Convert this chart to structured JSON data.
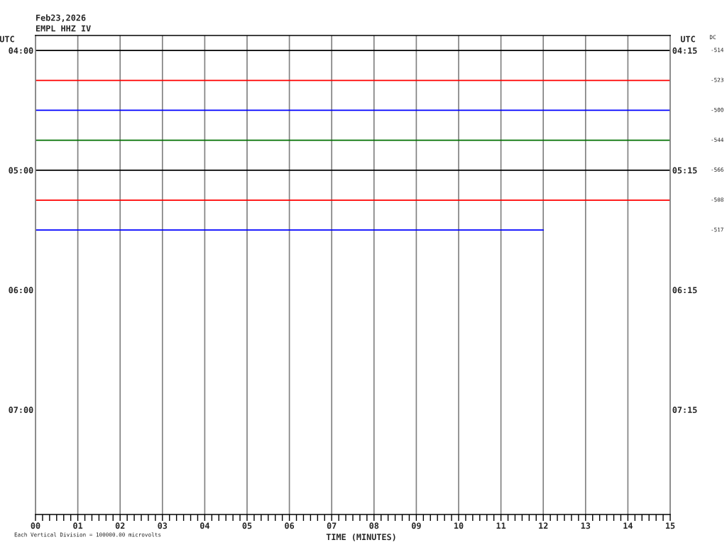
{
  "chart_data": {
    "type": "line",
    "title": "Feb23,2026",
    "subtitle": "EMPL HHZ IV",
    "xlabel": "TIME (MINUTES)",
    "ylabel": "UTC",
    "y2label": "UTC",
    "annotations": [
      "DC",
      "-514",
      "-523",
      "-500",
      "-544",
      "-566",
      "-508",
      "-517",
      "Each Vertical Division = 100000.00 microvolts"
    ],
    "xlim": [
      0,
      15
    ],
    "xticks": [
      {
        "value": 0,
        "label": "00"
      },
      {
        "value": 0.167,
        "label": null
      },
      {
        "value": 0.333,
        "label": null
      },
      {
        "value": 0.5,
        "label": null
      },
      {
        "value": 0.667,
        "label": null
      },
      {
        "value": 0.833,
        "label": null
      },
      {
        "value": 1,
        "label": "01"
      },
      {
        "value": 1.167,
        "label": null
      },
      {
        "value": 1.333,
        "label": null
      },
      {
        "value": 1.5,
        "label": null
      },
      {
        "value": 1.667,
        "label": null
      },
      {
        "value": 1.833,
        "label": null
      },
      {
        "value": 2,
        "label": "02"
      },
      {
        "value": 2.167,
        "label": null
      },
      {
        "value": 2.333,
        "label": null
      },
      {
        "value": 2.5,
        "label": null
      },
      {
        "value": 2.667,
        "label": null
      },
      {
        "value": 2.833,
        "label": null
      },
      {
        "value": 3,
        "label": "03"
      },
      {
        "value": 3.167,
        "label": null
      },
      {
        "value": 3.333,
        "label": null
      },
      {
        "value": 3.5,
        "label": null
      },
      {
        "value": 3.667,
        "label": null
      },
      {
        "value": 3.833,
        "label": null
      },
      {
        "value": 4,
        "label": "04"
      },
      {
        "value": 4.167,
        "label": null
      },
      {
        "value": 4.333,
        "label": null
      },
      {
        "value": 4.5,
        "label": null
      },
      {
        "value": 4.667,
        "label": null
      },
      {
        "value": 4.833,
        "label": null
      },
      {
        "value": 5,
        "label": "05"
      },
      {
        "value": 5.167,
        "label": null
      },
      {
        "value": 5.333,
        "label": null
      },
      {
        "value": 5.5,
        "label": null
      },
      {
        "value": 5.667,
        "label": null
      },
      {
        "value": 5.833,
        "label": null
      },
      {
        "value": 6,
        "label": "06"
      },
      {
        "value": 6.167,
        "label": null
      },
      {
        "value": 6.333,
        "label": null
      },
      {
        "value": 6.5,
        "label": null
      },
      {
        "value": 6.667,
        "label": null
      },
      {
        "value": 6.833,
        "label": null
      },
      {
        "value": 7,
        "label": "07"
      },
      {
        "value": 7.167,
        "label": null
      },
      {
        "value": 7.333,
        "label": null
      },
      {
        "value": 7.5,
        "label": null
      },
      {
        "value": 7.667,
        "label": null
      },
      {
        "value": 7.833,
        "label": null
      },
      {
        "value": 8,
        "label": "08"
      },
      {
        "value": 8.167,
        "label": null
      },
      {
        "value": 8.333,
        "label": null
      },
      {
        "value": 8.5,
        "label": null
      },
      {
        "value": 8.667,
        "label": null
      },
      {
        "value": 8.833,
        "label": null
      },
      {
        "value": 9,
        "label": "09"
      },
      {
        "value": 9.167,
        "label": null
      },
      {
        "value": 9.333,
        "label": null
      },
      {
        "value": 9.5,
        "label": null
      },
      {
        "value": 9.667,
        "label": null
      },
      {
        "value": 9.833,
        "label": null
      },
      10,
      {
        "value": 10.167,
        "label": null
      },
      {
        "value": 10.333,
        "label": null
      },
      {
        "value": 10.5,
        "label": null
      },
      {
        "value": 10.667,
        "label": null
      },
      {
        "value": 10.833,
        "label": null
      },
      11,
      {
        "value": 11.167,
        "label": null
      },
      {
        "value": 11.333,
        "label": null
      },
      {
        "value": 11.5,
        "label": null
      },
      {
        "value": 11.667,
        "label": null
      },
      {
        "value": 11.833,
        "label": null
      },
      12,
      {
        "value": 12.167,
        "label": null
      },
      {
        "value": 12.333,
        "label": null
      },
      {
        "value": 12.5,
        "label": null
      },
      {
        "value": 12.667,
        "label": null
      },
      {
        "value": 12.833,
        "label": null
      },
      13,
      {
        "value": 13.167,
        "label": null
      },
      {
        "value": 13.333,
        "label": null
      },
      {
        "value": 13.5,
        "label": null
      },
      {
        "value": 13.667,
        "label": null
      },
      {
        "value": 13.833,
        "label": null
      },
      14,
      {
        "value": 14.167,
        "label": null
      },
      {
        "value": 14.333,
        "label": null
      },
      {
        "value": 14.5,
        "label": null
      },
      {
        "value": 14.667,
        "label": null
      },
      {
        "value": 14.833,
        "label": null
      },
      15
    ],
    "ylim": [
      7.875,
      3.875
    ],
    "yticks": [
      {
        "value": 4,
        "label": "04:00"
      },
      {
        "value": 5,
        "label": "05:00"
      },
      {
        "value": 6,
        "label": "06:00"
      },
      {
        "value": 7,
        "label": "07:00"
      }
    ],
    "y2lim": [
      8.125,
      4.125
    ],
    "y2ticks": [
      {
        "value": 4.25,
        "label": "04:15"
      },
      {
        "value": 5.25,
        "label": "05:15"
      },
      {
        "value": 6.25,
        "label": "06:15"
      },
      {
        "value": 7.25,
        "label": "07:15"
      }
    ],
    "grid": "x",
    "line_style": "solid",
    "series": [
      {
        "color": "#000000",
        "x": [
          0,
          15
        ],
        "values": [
          4,
          4
        ]
      },
      {
        "color": "#ff0000",
        "x": [
          0,
          15
        ],
        "values": [
          4.25,
          4.25
        ]
      },
      {
        "color": "#0000ff",
        "x": [
          0,
          15
        ],
        "values": [
          4.5,
          4.5
        ]
      },
      {
        "color": "#007000",
        "x": [
          0,
          15
        ],
        "values": [
          4.75,
          4.75
        ]
      },
      {
        "color": "#000000",
        "x": [
          0,
          15
        ],
        "values": [
          5,
          5
        ]
      },
      {
        "color": "#ff0000",
        "x": [
          0,
          15
        ],
        "values": [
          5.25,
          5.25
        ]
      },
      {
        "color": "#0000ff",
        "x": [
          0,
          12
        ],
        "values": [
          5.5,
          5.5
        ]
      }
    ]
  }
}
